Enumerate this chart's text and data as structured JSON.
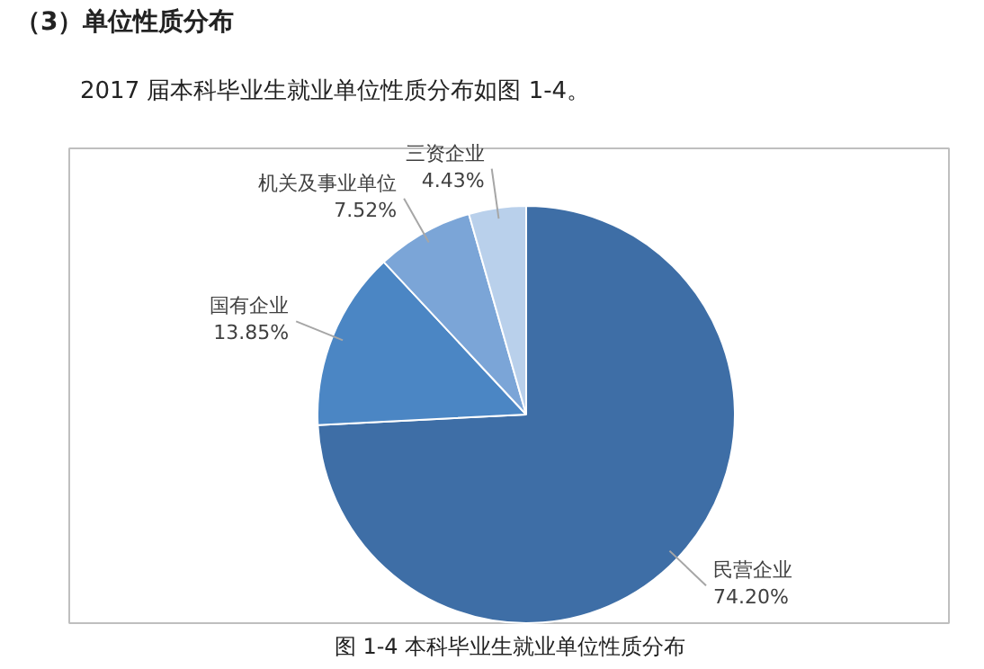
{
  "chart_data": {
    "type": "pie",
    "title": "（3）单位性质分布",
    "subtitle": "2017 届本科毕业生就业单位性质分布如图 1-4。",
    "annotations": [
      "图 1-4 本科毕业生就业单位性质分布"
    ],
    "categories": [
      "民营企业",
      "国有企业",
      "机关及事业单位",
      "三资企业"
    ],
    "values": [
      74.2,
      13.85,
      7.52,
      4.43
    ],
    "value_labels": [
      "74.20%",
      "13.85%",
      "7.52%",
      "4.43%"
    ],
    "colors": [
      "#3e6ea6",
      "#4b86c4",
      "#7ba5d7",
      "#b9d0eb"
    ]
  }
}
